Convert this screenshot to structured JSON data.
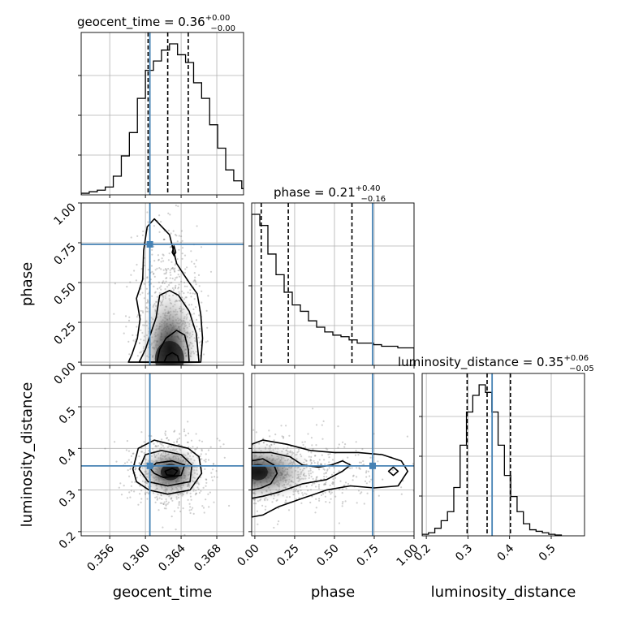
{
  "chart_data": {
    "type": "corner",
    "parameters": [
      {
        "name": "geocent_time",
        "label": "geocent_time",
        "title": "geocent_time = 0.36",
        "median_text": "0.36",
        "upper_err": "+0.00",
        "lower_err": "−0.00",
        "range": [
          0.3528,
          0.371
        ],
        "ticks": [
          0.356,
          0.36,
          0.364,
          0.368
        ],
        "tick_labels": [
          "0.356",
          "0.360",
          "0.364",
          "0.368"
        ],
        "quantiles": [
          0.3603,
          0.3625,
          0.3648
        ],
        "truth": 0.3605,
        "histogram": {
          "edges_start": 0.3528,
          "bin_width": 0.0009,
          "counts": [
            0.01,
            0.02,
            0.03,
            0.05,
            0.12,
            0.25,
            0.4,
            0.62,
            0.8,
            0.86,
            0.93,
            0.97,
            0.9,
            0.85,
            0.72,
            0.62,
            0.45,
            0.3,
            0.16,
            0.09,
            0.04,
            0.02
          ]
        }
      },
      {
        "name": "phase",
        "label": "phase",
        "title": "phase = 0.21",
        "median_text": "0.21",
        "upper_err": "+0.40",
        "lower_err": "−0.16",
        "range": [
          -0.02,
          1.0
        ],
        "ticks": [
          0.0,
          0.25,
          0.5,
          0.75,
          1.0
        ],
        "tick_labels": [
          "0.00",
          "0.25",
          "0.50",
          "0.75",
          "1.00"
        ],
        "quantiles": [
          0.04,
          0.21,
          0.61
        ],
        "truth": 0.74,
        "histogram": {
          "edges_start": -0.02,
          "bin_width": 0.051,
          "counts": [
            0.95,
            0.88,
            0.7,
            0.57,
            0.46,
            0.38,
            0.34,
            0.28,
            0.24,
            0.21,
            0.19,
            0.18,
            0.16,
            0.14,
            0.14,
            0.13,
            0.12,
            0.12,
            0.11,
            0.11
          ]
        }
      },
      {
        "name": "luminosity_distance",
        "label": "luminosity_distance",
        "title": "luminosity_distance = 0.35",
        "median_text": "0.35",
        "upper_err": "+0.06",
        "lower_err": "−0.05",
        "range": [
          0.19,
          0.58
        ],
        "ticks": [
          0.2,
          0.3,
          0.4,
          0.5
        ],
        "tick_labels": [
          "0.2",
          "0.3",
          "0.4",
          "0.5"
        ],
        "quantiles": [
          0.298,
          0.346,
          0.402
        ],
        "truth": 0.358,
        "histogram": {
          "edges_start": 0.19,
          "bin_width": 0.0152,
          "counts": [
            0.01,
            0.02,
            0.05,
            0.1,
            0.16,
            0.32,
            0.6,
            0.82,
            0.93,
            1.0,
            0.95,
            0.82,
            0.6,
            0.4,
            0.26,
            0.16,
            0.08,
            0.04,
            0.03,
            0.02,
            0.01,
            0.005
          ]
        }
      }
    ],
    "truth_color": "#4682b4",
    "contour_color": "#000000",
    "grid": true,
    "pairs": [
      {
        "x": "geocent_time",
        "y": "phase",
        "density_peak": [
          0.3627,
          0.03
        ],
        "contours": [
          [
            [
              0.3581,
              0.0
            ],
            [
              0.3585,
              0.05
            ],
            [
              0.3591,
              0.15
            ],
            [
              0.3594,
              0.27
            ],
            [
              0.359,
              0.4
            ],
            [
              0.3597,
              0.52
            ],
            [
              0.3598,
              0.7
            ],
            [
              0.3602,
              0.85
            ],
            [
              0.361,
              0.9
            ],
            [
              0.3627,
              0.8
            ],
            [
              0.3635,
              0.62
            ],
            [
              0.3643,
              0.55
            ],
            [
              0.3649,
              0.5
            ],
            [
              0.3658,
              0.43
            ],
            [
              0.3662,
              0.3
            ],
            [
              0.3664,
              0.15
            ],
            [
              0.3662,
              0.0
            ]
          ],
          [
            [
              0.3593,
              0.0
            ],
            [
              0.36,
              0.08
            ],
            [
              0.3612,
              0.28
            ],
            [
              0.3616,
              0.42
            ],
            [
              0.3627,
              0.45
            ],
            [
              0.3637,
              0.42
            ],
            [
              0.3649,
              0.32
            ],
            [
              0.3657,
              0.18
            ],
            [
              0.366,
              0.0
            ]
          ],
          [
            [
              0.3613,
              0.0
            ],
            [
              0.3616,
              0.08
            ],
            [
              0.3623,
              0.15
            ],
            [
              0.3635,
              0.2
            ],
            [
              0.3644,
              0.17
            ],
            [
              0.3648,
              0.08
            ],
            [
              0.3649,
              0.0
            ]
          ],
          [
            [
              0.3621,
              0.0
            ],
            [
              0.3624,
              0.04
            ],
            [
              0.363,
              0.06
            ],
            [
              0.3636,
              0.04
            ],
            [
              0.3638,
              0.0
            ]
          ],
          [
            [
              0.363,
              0.69
            ],
            [
              0.3632,
              0.73
            ],
            [
              0.3634,
              0.69
            ],
            [
              0.3632,
              0.67
            ]
          ]
        ]
      },
      {
        "x": "geocent_time",
        "y": "luminosity_distance",
        "density_peak": [
          0.3628,
          0.343
        ],
        "contours": [
          [
            [
              0.3586,
              0.35
            ],
            [
              0.3592,
              0.4
            ],
            [
              0.361,
              0.42
            ],
            [
              0.3628,
              0.41
            ],
            [
              0.3648,
              0.4
            ],
            [
              0.366,
              0.38
            ],
            [
              0.3663,
              0.34
            ],
            [
              0.365,
              0.3
            ],
            [
              0.3625,
              0.29
            ],
            [
              0.3604,
              0.3
            ],
            [
              0.359,
              0.32
            ]
          ],
          [
            [
              0.3593,
              0.35
            ],
            [
              0.36,
              0.385
            ],
            [
              0.3618,
              0.395
            ],
            [
              0.364,
              0.385
            ],
            [
              0.3652,
              0.36
            ],
            [
              0.365,
              0.32
            ],
            [
              0.3625,
              0.31
            ],
            [
              0.3603,
              0.32
            ]
          ],
          [
            [
              0.3606,
              0.35
            ],
            [
              0.3612,
              0.365
            ],
            [
              0.363,
              0.37
            ],
            [
              0.3644,
              0.36
            ],
            [
              0.364,
              0.335
            ],
            [
              0.362,
              0.33
            ],
            [
              0.361,
              0.34
            ]
          ],
          [
            [
              0.3622,
              0.345
            ],
            [
              0.363,
              0.352
            ],
            [
              0.3636,
              0.346
            ],
            [
              0.3632,
              0.335
            ],
            [
              0.3624,
              0.336
            ]
          ]
        ]
      },
      {
        "x": "phase",
        "y": "luminosity_distance",
        "density_peak": [
          0.02,
          0.343
        ],
        "contours": [
          [
            [
              -0.02,
              0.41
            ],
            [
              0.05,
              0.42
            ],
            [
              0.2,
              0.41
            ],
            [
              0.35,
              0.395
            ],
            [
              0.5,
              0.39
            ],
            [
              0.65,
              0.39
            ],
            [
              0.8,
              0.385
            ],
            [
              0.92,
              0.37
            ],
            [
              0.96,
              0.345
            ],
            [
              0.9,
              0.31
            ],
            [
              0.75,
              0.305
            ],
            [
              0.6,
              0.31
            ],
            [
              0.45,
              0.3
            ],
            [
              0.3,
              0.28
            ],
            [
              0.15,
              0.26
            ],
            [
              0.05,
              0.24
            ],
            [
              -0.02,
              0.235
            ]
          ],
          [
            [
              -0.02,
              0.39
            ],
            [
              0.1,
              0.39
            ],
            [
              0.22,
              0.38
            ],
            [
              0.3,
              0.36
            ],
            [
              0.4,
              0.355
            ],
            [
              0.48,
              0.36
            ],
            [
              0.55,
              0.37
            ],
            [
              0.6,
              0.36
            ],
            [
              0.55,
              0.345
            ],
            [
              0.45,
              0.325
            ],
            [
              0.3,
              0.315
            ],
            [
              0.15,
              0.295
            ],
            [
              0.05,
              0.285
            ],
            [
              -0.02,
              0.28
            ]
          ],
          [
            [
              -0.02,
              0.37
            ],
            [
              0.05,
              0.375
            ],
            [
              0.12,
              0.36
            ],
            [
              0.14,
              0.34
            ],
            [
              0.1,
              0.315
            ],
            [
              0.04,
              0.305
            ],
            [
              -0.02,
              0.3
            ]
          ],
          [
            [
              0.84,
              0.345
            ],
            [
              0.87,
              0.355
            ],
            [
              0.9,
              0.345
            ],
            [
              0.87,
              0.335
            ]
          ]
        ]
      }
    ]
  }
}
